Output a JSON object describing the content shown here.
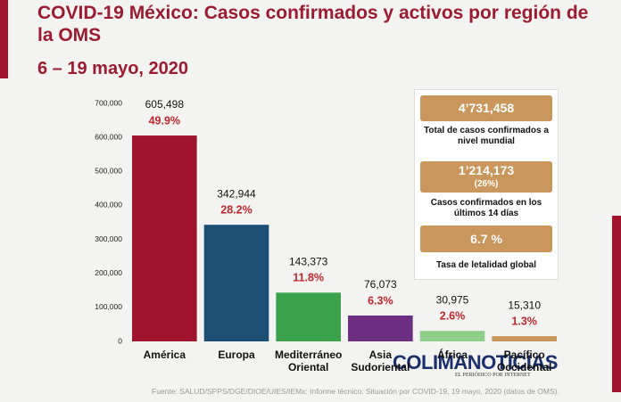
{
  "chart_data": {
    "type": "bar",
    "title": "COVID-19 México: Casos confirmados y activos por región de la OMS",
    "subtitle": "6 – 19 mayo, 2020",
    "categories": [
      "América",
      "Europa",
      "Mediterráneo Oriental",
      "Asia Sudoriental",
      "África",
      "Pacífico Occidental"
    ],
    "values": [
      605498,
      342944,
      143373,
      76073,
      30975,
      15310
    ],
    "value_labels": [
      "605,498",
      "342,944",
      "143,373",
      "76,073",
      "30,975",
      "15,310"
    ],
    "percentages": [
      49.9,
      28.2,
      11.8,
      6.3,
      2.6,
      1.3
    ],
    "percentage_labels": [
      "49.9%",
      "28.2%",
      "11.8%",
      "6.3%",
      "2.6%",
      "1.3%"
    ],
    "colors": [
      "#a0142c",
      "#1d4f75",
      "#3ba14b",
      "#6c2e80",
      "#90cf8b",
      "#c9975c"
    ],
    "ylim": [
      0,
      700000
    ],
    "yticks": [
      0,
      {
        "value": 100000,
        "label": "100,000"
      },
      {
        "value": 200000,
        "label": "200,000"
      },
      {
        "value": 300000,
        "label": "300,000"
      },
      {
        "value": 400000,
        "label": "400,000"
      },
      {
        "value": 500000,
        "label": "500,000"
      },
      {
        "value": 600000,
        "label": "600,000"
      },
      {
        "value": 700000,
        "label": "700,000"
      }
    ],
    "grid": false,
    "summary": [
      {
        "figure": "4’731,458",
        "caption": "Total de casos confirmados a nivel mundial"
      },
      {
        "figure": "1’214,173",
        "detail": "(26%)",
        "caption": "Casos confirmados en los últimos 14 días"
      },
      {
        "figure": "6.7 %",
        "caption": "Tasa de letalidad global"
      }
    ],
    "source": "Fuente: SALUD/SPPS/DGE/DIOE/UIES/IEMx: Informe técnico: Situación por COVID-19, 19 mayo, 2020 (datos de OMS).",
    "watermark": "COLIMANOTICIAS",
    "watermark_tagline": "EL PERIÓDICO POR INTERNET"
  }
}
